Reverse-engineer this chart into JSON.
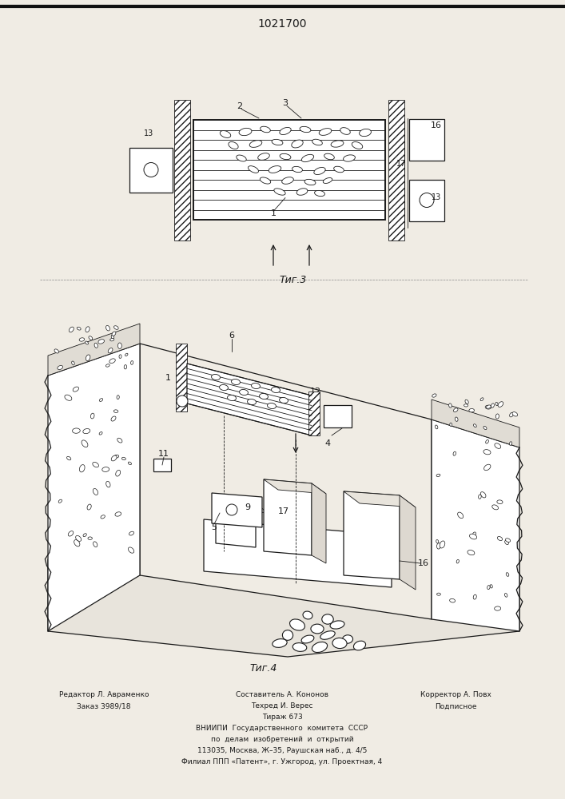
{
  "title": "1021700",
  "fig_width": 7.07,
  "fig_height": 10.0,
  "bg_color": "#f0ece4",
  "line_color": "#1a1a1a",
  "fig3_label": "Τиг.3",
  "fig4_label": "Τиг.4",
  "footer_left1": "Редактор Л. Авраменко",
  "footer_left2": "Заказ 3989/18",
  "footer_center1": "Составитель А. Кононов",
  "footer_center2": "Техред И. Верес",
  "footer_center3": "Тираж 673",
  "footer_center4": "ВНИИПИ  Государственного  комитета  СССР",
  "footer_center5": "по  делам  изобретений  и  открытий",
  "footer_center6": "113035, Москва, Ж–35, Раушская наб., д. 4/5",
  "footer_center7": "Филиал ППП «Патент», г. Ужгород, ул. Проектная, 4",
  "footer_right1": "Корректор А. Повх",
  "footer_right2": "Подписное"
}
